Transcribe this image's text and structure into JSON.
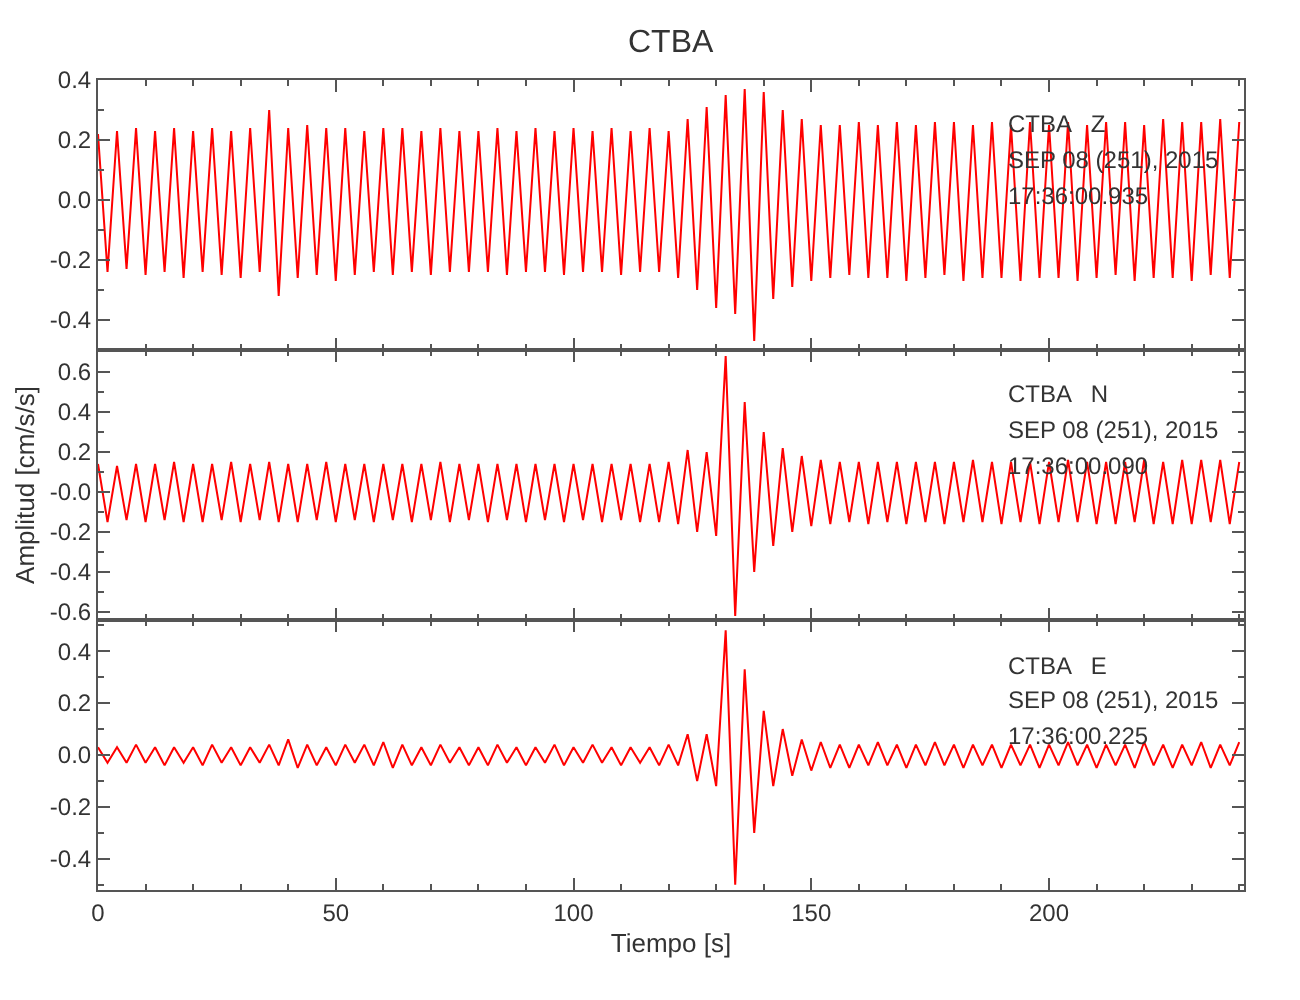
{
  "chart_data": [
    {
      "type": "line",
      "title": "CTBA",
      "annotations": [
        "CTBA   Z",
        "SEP 08 (251), 2015",
        "17:36:00.935"
      ],
      "tick_labels": "y",
      "line_style": "solid",
      "xlim": [
        0,
        241
      ],
      "xticks": [
        0,
        50,
        100,
        150,
        200
      ],
      "ylim": [
        -0.5,
        0.4
      ],
      "yticks": [
        {
          "value": -0.4,
          "label": "-0.4"
        },
        {
          "value": -0.2,
          "label": "-0.2"
        },
        {
          "value": 0,
          "label": "0.0"
        },
        {
          "value": 0.2,
          "label": "0.2"
        },
        {
          "value": 0.4,
          "label": "0.4"
        }
      ],
      "x": [
        0,
        2,
        4,
        6,
        8,
        10,
        12,
        14,
        16,
        18,
        20,
        22,
        24,
        26,
        28,
        30,
        32,
        34,
        36,
        38,
        40,
        42,
        44,
        46,
        48,
        50,
        52,
        54,
        56,
        58,
        60,
        62,
        64,
        66,
        68,
        70,
        72,
        74,
        76,
        78,
        80,
        82,
        84,
        86,
        88,
        90,
        92,
        94,
        96,
        98,
        100,
        102,
        104,
        106,
        108,
        110,
        112,
        114,
        116,
        118,
        120,
        122,
        124,
        126,
        128,
        130,
        132,
        134,
        136,
        138,
        140,
        142,
        144,
        146,
        148,
        150,
        152,
        154,
        156,
        158,
        160,
        162,
        164,
        166,
        168,
        170,
        172,
        174,
        176,
        178,
        180,
        182,
        184,
        186,
        188,
        190,
        192,
        194,
        196,
        198,
        200,
        202,
        204,
        206,
        208,
        210,
        212,
        214,
        216,
        218,
        220,
        222,
        224,
        226,
        228,
        230,
        232,
        234,
        236,
        238,
        240
      ],
      "series": [
        {
          "color": "#ff0000",
          "values": [
            0.22,
            -0.24,
            0.23,
            -0.23,
            0.24,
            -0.25,
            0.23,
            -0.24,
            0.24,
            -0.26,
            0.23,
            -0.24,
            0.24,
            -0.25,
            0.23,
            -0.26,
            0.24,
            -0.24,
            0.3,
            -0.32,
            0.24,
            -0.26,
            0.25,
            -0.25,
            0.24,
            -0.27,
            0.24,
            -0.25,
            0.23,
            -0.24,
            0.24,
            -0.25,
            0.24,
            -0.24,
            0.23,
            -0.25,
            0.24,
            -0.24,
            0.23,
            -0.24,
            0.23,
            -0.24,
            0.24,
            -0.25,
            0.23,
            -0.24,
            0.24,
            -0.24,
            0.23,
            -0.25,
            0.24,
            -0.24,
            0.23,
            -0.24,
            0.24,
            -0.25,
            0.23,
            -0.24,
            0.24,
            -0.24,
            0.23,
            -0.26,
            0.27,
            -0.3,
            0.31,
            -0.36,
            0.35,
            -0.38,
            0.37,
            -0.47,
            0.36,
            -0.33,
            0.3,
            -0.29,
            0.27,
            -0.27,
            0.25,
            -0.26,
            0.25,
            -0.25,
            0.26,
            -0.26,
            0.25,
            -0.26,
            0.26,
            -0.27,
            0.25,
            -0.26,
            0.26,
            -0.25,
            0.26,
            -0.27,
            0.25,
            -0.26,
            0.26,
            -0.26,
            0.25,
            -0.27,
            0.26,
            -0.26,
            0.25,
            -0.26,
            0.26,
            -0.27,
            0.25,
            -0.26,
            0.26,
            -0.25,
            0.26,
            -0.27,
            0.25,
            -0.26,
            0.27,
            -0.26,
            0.26,
            -0.27,
            0.26,
            -0.25,
            0.27,
            -0.26,
            0.26
          ]
        }
      ]
    },
    {
      "type": "line",
      "ylabel": "Amplitud [cm/s/s]",
      "annotations": [
        "CTBA   N",
        "SEP 08 (251), 2015",
        "17:36:00.090"
      ],
      "tick_labels": "y",
      "line_style": "solid",
      "xlim": [
        0,
        241
      ],
      "xticks": [
        0,
        50,
        100,
        150,
        200
      ],
      "ylim": [
        -0.64,
        0.71
      ],
      "yticks": [
        {
          "value": -0.6,
          "label": "-0.6"
        },
        {
          "value": -0.4,
          "label": "-0.4"
        },
        {
          "value": -0.2,
          "label": "-0.2"
        },
        {
          "value": 0,
          "label": "-0.0"
        },
        {
          "value": 0.2,
          "label": "0.2"
        },
        {
          "value": 0.4,
          "label": "0.4"
        },
        {
          "value": 0.6,
          "label": "0.6"
        }
      ],
      "x": [
        0,
        2,
        4,
        6,
        8,
        10,
        12,
        14,
        16,
        18,
        20,
        22,
        24,
        26,
        28,
        30,
        32,
        34,
        36,
        38,
        40,
        42,
        44,
        46,
        48,
        50,
        52,
        54,
        56,
        58,
        60,
        62,
        64,
        66,
        68,
        70,
        72,
        74,
        76,
        78,
        80,
        82,
        84,
        86,
        88,
        90,
        92,
        94,
        96,
        98,
        100,
        102,
        104,
        106,
        108,
        110,
        112,
        114,
        116,
        118,
        120,
        122,
        124,
        126,
        128,
        130,
        132,
        134,
        136,
        138,
        140,
        142,
        144,
        146,
        148,
        150,
        152,
        154,
        156,
        158,
        160,
        162,
        164,
        166,
        168,
        170,
        172,
        174,
        176,
        178,
        180,
        182,
        184,
        186,
        188,
        190,
        192,
        194,
        196,
        198,
        200,
        202,
        204,
        206,
        208,
        210,
        212,
        214,
        216,
        218,
        220,
        222,
        224,
        226,
        228,
        230,
        232,
        234,
        236,
        238,
        240
      ],
      "series": [
        {
          "color": "#ff0000",
          "values": [
            0.14,
            -0.15,
            0.13,
            -0.14,
            0.14,
            -0.15,
            0.14,
            -0.14,
            0.15,
            -0.15,
            0.14,
            -0.15,
            0.14,
            -0.14,
            0.15,
            -0.15,
            0.14,
            -0.14,
            0.15,
            -0.15,
            0.14,
            -0.15,
            0.14,
            -0.14,
            0.15,
            -0.15,
            0.14,
            -0.14,
            0.14,
            -0.15,
            0.14,
            -0.14,
            0.14,
            -0.15,
            0.14,
            -0.14,
            0.15,
            -0.15,
            0.14,
            -0.14,
            0.14,
            -0.15,
            0.14,
            -0.14,
            0.14,
            -0.15,
            0.14,
            -0.14,
            0.14,
            -0.15,
            0.14,
            -0.14,
            0.14,
            -0.15,
            0.14,
            -0.14,
            0.14,
            -0.15,
            0.14,
            -0.15,
            0.15,
            -0.16,
            0.21,
            -0.2,
            0.2,
            -0.22,
            0.68,
            -0.62,
            0.45,
            -0.4,
            0.3,
            -0.27,
            0.22,
            -0.2,
            0.18,
            -0.17,
            0.16,
            -0.16,
            0.15,
            -0.15,
            0.15,
            -0.16,
            0.15,
            -0.15,
            0.15,
            -0.16,
            0.15,
            -0.15,
            0.15,
            -0.16,
            0.15,
            -0.15,
            0.16,
            -0.15,
            0.15,
            -0.16,
            0.15,
            -0.15,
            0.15,
            -0.16,
            0.15,
            -0.15,
            0.16,
            -0.15,
            0.15,
            -0.16,
            0.15,
            -0.16,
            0.15,
            -0.15,
            0.16,
            -0.16,
            0.15,
            -0.16,
            0.16,
            -0.16,
            0.16,
            -0.15,
            0.16,
            -0.16,
            0.15
          ]
        }
      ]
    },
    {
      "type": "line",
      "xlabel": "Tiempo [s]",
      "annotations": [
        "CTBA   E",
        "SEP 08 (251), 2015",
        "17:36:00.225"
      ],
      "line_style": "solid",
      "xlim": [
        0,
        241
      ],
      "xticks": [
        0,
        50,
        100,
        150,
        200
      ],
      "ylim": [
        -0.52,
        0.52
      ],
      "yticks": [
        {
          "value": -0.4,
          "label": "-0.4"
        },
        {
          "value": -0.2,
          "label": "-0.2"
        },
        {
          "value": 0,
          "label": "0.0"
        },
        {
          "value": 0.2,
          "label": "0.2"
        },
        {
          "value": 0.4,
          "label": "0.4"
        }
      ],
      "x": [
        0,
        2,
        4,
        6,
        8,
        10,
        12,
        14,
        16,
        18,
        20,
        22,
        24,
        26,
        28,
        30,
        32,
        34,
        36,
        38,
        40,
        42,
        44,
        46,
        48,
        50,
        52,
        54,
        56,
        58,
        60,
        62,
        64,
        66,
        68,
        70,
        72,
        74,
        76,
        78,
        80,
        82,
        84,
        86,
        88,
        90,
        92,
        94,
        96,
        98,
        100,
        102,
        104,
        106,
        108,
        110,
        112,
        114,
        116,
        118,
        120,
        122,
        124,
        126,
        128,
        130,
        132,
        134,
        136,
        138,
        140,
        142,
        144,
        146,
        148,
        150,
        152,
        154,
        156,
        158,
        160,
        162,
        164,
        166,
        168,
        170,
        172,
        174,
        176,
        178,
        180,
        182,
        184,
        186,
        188,
        190,
        192,
        194,
        196,
        198,
        200,
        202,
        204,
        206,
        208,
        210,
        212,
        214,
        216,
        218,
        220,
        222,
        224,
        226,
        228,
        230,
        232,
        234,
        236,
        238,
        240
      ],
      "series": [
        {
          "color": "#ff0000",
          "values": [
            0.03,
            -0.03,
            0.03,
            -0.03,
            0.04,
            -0.03,
            0.03,
            -0.04,
            0.03,
            -0.03,
            0.03,
            -0.04,
            0.04,
            -0.03,
            0.03,
            -0.04,
            0.03,
            -0.03,
            0.04,
            -0.04,
            0.06,
            -0.05,
            0.04,
            -0.04,
            0.03,
            -0.04,
            0.04,
            -0.03,
            0.04,
            -0.04,
            0.05,
            -0.05,
            0.04,
            -0.04,
            0.03,
            -0.04,
            0.04,
            -0.03,
            0.03,
            -0.04,
            0.03,
            -0.04,
            0.04,
            -0.03,
            0.03,
            -0.04,
            0.03,
            -0.03,
            0.04,
            -0.04,
            0.03,
            -0.03,
            0.04,
            -0.03,
            0.03,
            -0.04,
            0.03,
            -0.03,
            0.03,
            -0.04,
            0.04,
            -0.04,
            0.08,
            -0.1,
            0.08,
            -0.12,
            0.48,
            -0.5,
            0.33,
            -0.3,
            0.17,
            -0.12,
            0.1,
            -0.08,
            0.06,
            -0.06,
            0.05,
            -0.05,
            0.04,
            -0.05,
            0.04,
            -0.04,
            0.05,
            -0.04,
            0.04,
            -0.05,
            0.04,
            -0.04,
            0.05,
            -0.04,
            0.04,
            -0.05,
            0.04,
            -0.04,
            0.04,
            -0.05,
            0.04,
            -0.04,
            0.04,
            -0.05,
            0.04,
            -0.04,
            0.05,
            -0.04,
            0.04,
            -0.05,
            0.04,
            -0.04,
            0.04,
            -0.05,
            0.05,
            -0.04,
            0.04,
            -0.05,
            0.04,
            -0.04,
            0.05,
            -0.05,
            0.04,
            -0.04,
            0.05
          ]
        }
      ]
    }
  ]
}
